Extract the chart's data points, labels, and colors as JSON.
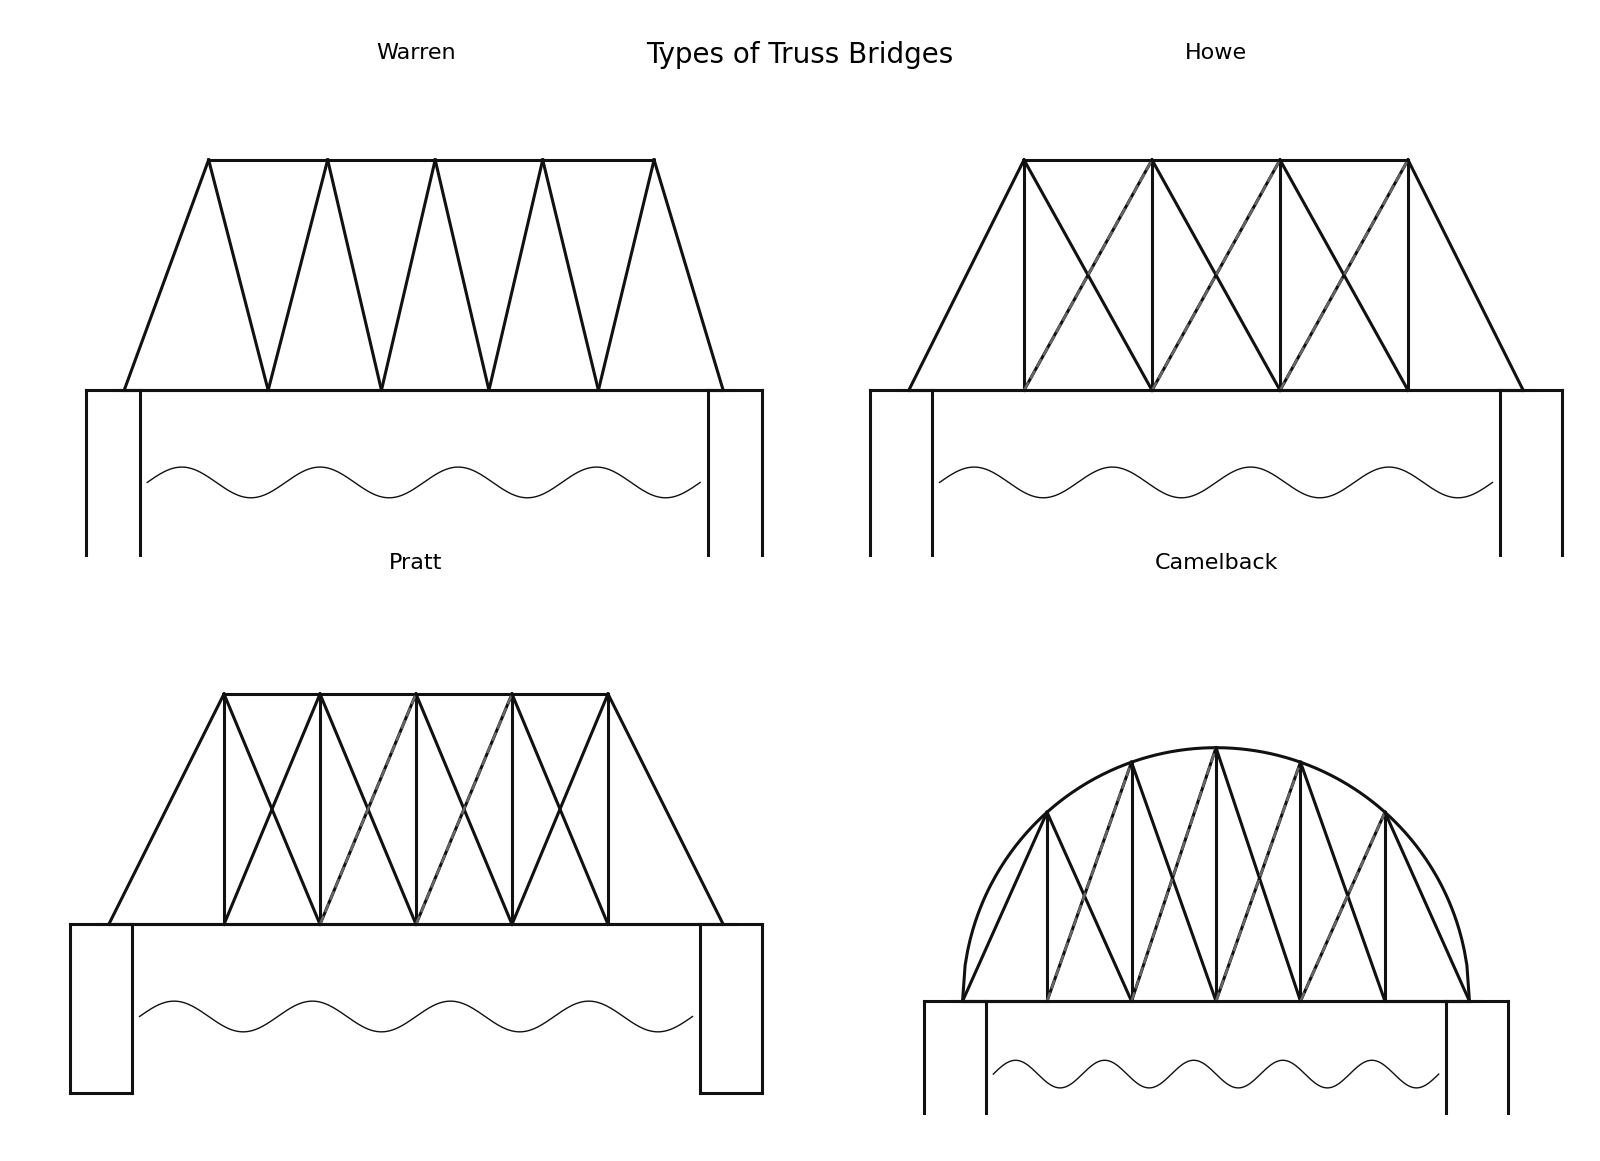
{
  "title": "Types of Truss Bridges",
  "title_fontsize": 20,
  "subtitle_fontsize": 16,
  "background_color": "#ffffff",
  "line_color": "#111111",
  "line_width": 2.2,
  "dashed_color": "#666666",
  "dashed_lw": 1.8,
  "labels": {
    "warren": "Warren",
    "howe": "Howe",
    "pratt": "Pratt",
    "camelback": "Camelback"
  }
}
